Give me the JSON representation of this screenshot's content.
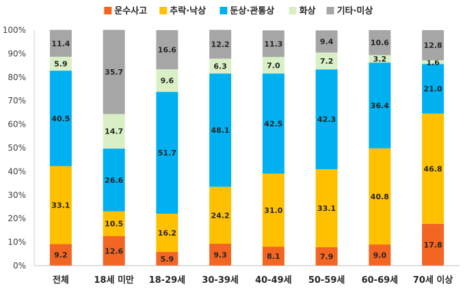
{
  "chart_data": {
    "type": "bar",
    "stacked": true,
    "categories": [
      "전체",
      "18세 미만",
      "18-29세",
      "30-39세",
      "40-49세",
      "50-59세",
      "60-69세",
      "70세 이상"
    ],
    "y_tick_labels": [
      "0%",
      "10%",
      "20%",
      "30%",
      "40%",
      "50%",
      "60%",
      "70%",
      "80%",
      "90%",
      "100%"
    ],
    "ylim": [
      0,
      100
    ],
    "grid": false,
    "legend_position": "top",
    "series": [
      {
        "name": "운수사고",
        "color": "#F26522",
        "values": [
          9.2,
          12.6,
          5.9,
          9.3,
          8.1,
          7.9,
          9.0,
          17.8
        ]
      },
      {
        "name": "추락·낙상",
        "color": "#FFC000",
        "values": [
          33.1,
          10.5,
          16.2,
          24.2,
          31.0,
          33.1,
          40.8,
          46.8
        ]
      },
      {
        "name": "둔상·관통상",
        "color": "#00B0F0",
        "values": [
          40.5,
          26.6,
          51.7,
          48.1,
          42.5,
          42.3,
          36.4,
          21.0
        ]
      },
      {
        "name": "화상",
        "color": "#D9EFC5",
        "values": [
          5.9,
          14.7,
          9.6,
          6.3,
          7.0,
          7.2,
          3.2,
          1.6
        ]
      },
      {
        "name": "기타·미상",
        "color": "#A6A6A6",
        "values": [
          11.4,
          35.7,
          16.6,
          12.2,
          11.3,
          9.4,
          10.6,
          12.8
        ]
      }
    ]
  }
}
